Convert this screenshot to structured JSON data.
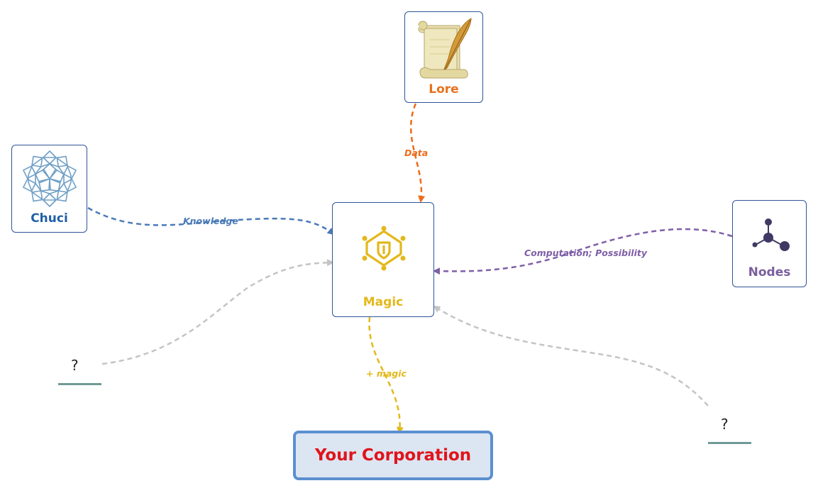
{
  "nodes": {
    "lore": {
      "label": "Lore",
      "icon": "scroll-quill-icon",
      "color": "#e8721c"
    },
    "chuci": {
      "label": "Chuci",
      "icon": "rosette-icon",
      "color": "#1f5fa8"
    },
    "magic": {
      "label": "Magic",
      "icon": "star-shield-icon",
      "color": "#e3b81b"
    },
    "nodes": {
      "label": "Nodes",
      "icon": "molecule-icon",
      "color": "#7a5e9e"
    },
    "unknown_left": {
      "label": "?"
    },
    "unknown_right": {
      "label": "?"
    },
    "corporation": {
      "label": "Your Corporation",
      "color": "#e0141b"
    }
  },
  "edges": {
    "data": {
      "label": "Data",
      "color": "#ee6b1c"
    },
    "knowledge": {
      "label": "Knowledge",
      "color": "#4a7ab8"
    },
    "computation": {
      "label": "Computation; Possibility",
      "color": "#7f5fa8"
    },
    "plus_magic": {
      "label": "+ magic",
      "color": "#e3b81b"
    },
    "unknown": {
      "color": "#c4c4c4"
    }
  }
}
